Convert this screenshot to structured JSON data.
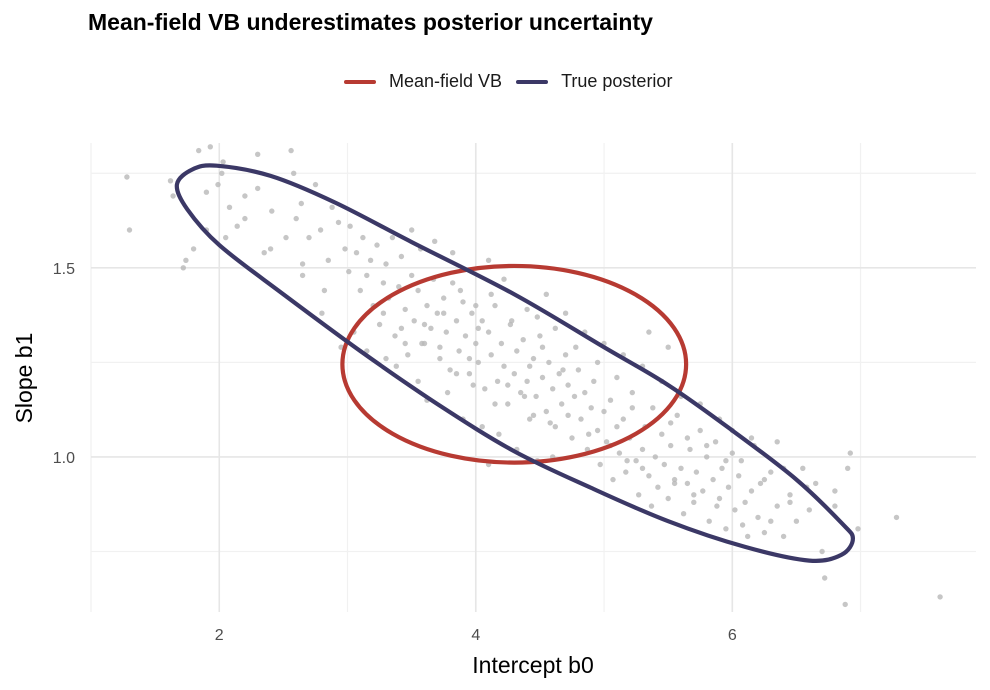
{
  "chart_data": {
    "type": "scatter",
    "title": "Mean-field VB underestimates posterior uncertainty",
    "xlabel": "Intercept  b0",
    "ylabel": "Slope  b1",
    "xlim": [
      1.0,
      7.9
    ],
    "ylim": [
      0.59,
      1.83
    ],
    "x_ticks": [
      2,
      4,
      6
    ],
    "x_tick_labels": [
      "2",
      "4",
      "6"
    ],
    "y_ticks": [
      1.0,
      1.5
    ],
    "y_tick_labels": [
      "1.0",
      "1.5"
    ],
    "grid": true,
    "legend_position": "top",
    "legend": [
      {
        "name": "Mean-field VB",
        "color": "#b73a32"
      },
      {
        "name": "True posterior",
        "color": "#3b3866"
      }
    ],
    "ellipses": [
      {
        "name": "Mean-field VB",
        "center": [
          4.3,
          1.245
        ],
        "semi_axis_x": 1.34,
        "semi_axis_y": 0.26,
        "color": "#b73a32"
      },
      {
        "name": "True posterior",
        "polyline": [
          [
            1.79,
            1.76
          ],
          [
            1.98,
            1.77
          ],
          [
            2.4,
            1.743
          ],
          [
            2.9,
            1.673
          ],
          [
            3.5,
            1.568
          ],
          [
            4.3,
            1.43
          ],
          [
            5.0,
            1.29
          ],
          [
            5.5,
            1.19
          ],
          [
            6.0,
            1.07
          ],
          [
            6.5,
            0.94
          ],
          [
            6.85,
            0.826
          ],
          [
            6.94,
            0.784
          ],
          [
            6.85,
            0.741
          ],
          [
            6.6,
            0.726
          ],
          [
            6.1,
            0.762
          ],
          [
            5.5,
            0.83
          ],
          [
            4.9,
            0.918
          ],
          [
            4.3,
            1.015
          ],
          [
            3.7,
            1.14
          ],
          [
            3.1,
            1.28
          ],
          [
            2.5,
            1.43
          ],
          [
            2.0,
            1.56
          ],
          [
            1.75,
            1.655
          ],
          [
            1.67,
            1.72
          ],
          [
            1.79,
            1.76
          ]
        ],
        "color": "#3b3866"
      }
    ],
    "point_color": "#b8b8b8",
    "points": [
      [
        1.28,
        1.74
      ],
      [
        1.3,
        1.6
      ],
      [
        1.62,
        1.73
      ],
      [
        1.64,
        1.69
      ],
      [
        1.72,
        1.5
      ],
      [
        1.74,
        1.52
      ],
      [
        1.8,
        1.55
      ],
      [
        1.84,
        1.81
      ],
      [
        1.9,
        1.7
      ],
      [
        1.9,
        1.6
      ],
      [
        1.93,
        1.82
      ],
      [
        1.99,
        1.72
      ],
      [
        2.02,
        1.75
      ],
      [
        2.03,
        1.78
      ],
      [
        2.05,
        1.58
      ],
      [
        2.08,
        1.66
      ],
      [
        2.14,
        1.61
      ],
      [
        2.2,
        1.69
      ],
      [
        2.3,
        1.8
      ],
      [
        2.3,
        1.71
      ],
      [
        2.35,
        1.54
      ],
      [
        2.41,
        1.65
      ],
      [
        2.52,
        1.58
      ],
      [
        2.56,
        1.81
      ],
      [
        2.58,
        1.75
      ],
      [
        2.6,
        1.63
      ],
      [
        2.64,
        1.67
      ],
      [
        2.65,
        1.48
      ],
      [
        2.7,
        1.58
      ],
      [
        2.75,
        1.72
      ],
      [
        2.79,
        1.6
      ],
      [
        2.82,
        1.44
      ],
      [
        2.85,
        1.52
      ],
      [
        2.88,
        1.66
      ],
      [
        2.93,
        1.62
      ],
      [
        2.98,
        1.55
      ],
      [
        3.01,
        1.49
      ],
      [
        3.02,
        1.61
      ],
      [
        3.07,
        1.54
      ],
      [
        3.1,
        1.44
      ],
      [
        3.12,
        1.58
      ],
      [
        3.15,
        1.48
      ],
      [
        3.18,
        1.52
      ],
      [
        3.2,
        1.4
      ],
      [
        3.23,
        1.56
      ],
      [
        3.25,
        1.35
      ],
      [
        3.28,
        1.46
      ],
      [
        3.3,
        1.51
      ],
      [
        3.32,
        1.42
      ],
      [
        3.35,
        1.58
      ],
      [
        3.37,
        1.32
      ],
      [
        3.4,
        1.45
      ],
      [
        3.42,
        1.53
      ],
      [
        3.45,
        1.39
      ],
      [
        3.47,
        1.27
      ],
      [
        3.5,
        1.48
      ],
      [
        3.52,
        1.36
      ],
      [
        3.55,
        1.44
      ],
      [
        3.57,
        1.55
      ],
      [
        3.6,
        1.3
      ],
      [
        3.62,
        1.4
      ],
      [
        3.65,
        1.34
      ],
      [
        3.67,
        1.47
      ],
      [
        3.7,
        1.38
      ],
      [
        3.72,
        1.29
      ],
      [
        3.75,
        1.42
      ],
      [
        3.77,
        1.33
      ],
      [
        3.8,
        1.23
      ],
      [
        3.82,
        1.46
      ],
      [
        3.85,
        1.36
      ],
      [
        3.87,
        1.28
      ],
      [
        3.9,
        1.41
      ],
      [
        3.92,
        1.32
      ],
      [
        3.95,
        1.22
      ],
      [
        3.97,
        1.38
      ],
      [
        4.0,
        1.3
      ],
      [
        4.02,
        1.25
      ],
      [
        4.05,
        1.36
      ],
      [
        4.07,
        1.18
      ],
      [
        4.1,
        1.33
      ],
      [
        4.12,
        1.27
      ],
      [
        4.15,
        1.4
      ],
      [
        4.17,
        1.2
      ],
      [
        4.2,
        1.3
      ],
      [
        4.22,
        1.24
      ],
      [
        4.25,
        1.14
      ],
      [
        4.27,
        1.35
      ],
      [
        4.3,
        1.22
      ],
      [
        4.32,
        1.28
      ],
      [
        4.35,
        1.17
      ],
      [
        4.37,
        1.31
      ],
      [
        4.4,
        1.2
      ],
      [
        4.42,
        1.1
      ],
      [
        4.45,
        1.26
      ],
      [
        4.47,
        1.16
      ],
      [
        4.5,
        1.32
      ],
      [
        4.52,
        1.21
      ],
      [
        4.55,
        1.12
      ],
      [
        4.57,
        1.25
      ],
      [
        4.6,
        1.18
      ],
      [
        4.62,
        1.08
      ],
      [
        4.65,
        1.22
      ],
      [
        4.67,
        1.14
      ],
      [
        4.7,
        1.27
      ],
      [
        4.72,
        1.19
      ],
      [
        4.75,
        1.05
      ],
      [
        4.77,
        1.16
      ],
      [
        4.8,
        1.23
      ],
      [
        4.82,
        1.1
      ],
      [
        4.85,
        1.17
      ],
      [
        4.87,
        1.02
      ],
      [
        4.9,
        1.13
      ],
      [
        4.92,
        1.2
      ],
      [
        4.95,
        1.07
      ],
      [
        4.97,
        0.98
      ],
      [
        5.0,
        1.12
      ],
      [
        5.02,
        1.04
      ],
      [
        5.05,
        1.15
      ],
      [
        5.07,
        0.94
      ],
      [
        5.1,
        1.08
      ],
      [
        5.12,
        1.01
      ],
      [
        5.15,
        1.1
      ],
      [
        5.17,
        0.96
      ],
      [
        5.2,
        1.05
      ],
      [
        5.22,
        1.13
      ],
      [
        5.25,
        0.99
      ],
      [
        5.27,
        0.9
      ],
      [
        5.3,
        1.02
      ],
      [
        5.32,
        1.08
      ],
      [
        5.35,
        0.95
      ],
      [
        5.37,
        0.87
      ],
      [
        5.4,
        1.0
      ],
      [
        5.42,
        0.92
      ],
      [
        5.45,
        1.06
      ],
      [
        5.47,
        0.98
      ],
      [
        5.5,
        0.89
      ],
      [
        5.52,
        1.03
      ],
      [
        5.55,
        0.94
      ],
      [
        5.57,
        1.11
      ],
      [
        5.6,
        0.97
      ],
      [
        5.62,
        0.85
      ],
      [
        5.65,
        0.93
      ],
      [
        5.67,
        1.02
      ],
      [
        5.7,
        0.88
      ],
      [
        5.72,
        0.96
      ],
      [
        5.75,
        1.07
      ],
      [
        5.77,
        0.91
      ],
      [
        5.8,
        1.0
      ],
      [
        5.82,
        0.83
      ],
      [
        5.85,
        0.94
      ],
      [
        5.87,
        1.04
      ],
      [
        5.9,
        0.89
      ],
      [
        5.92,
        0.97
      ],
      [
        5.95,
        0.81
      ],
      [
        5.97,
        0.92
      ],
      [
        6.0,
        1.01
      ],
      [
        6.02,
        0.86
      ],
      [
        6.05,
        0.95
      ],
      [
        6.07,
        0.99
      ],
      [
        6.1,
        0.88
      ],
      [
        6.12,
        0.79
      ],
      [
        6.15,
        0.91
      ],
      [
        6.17,
        1.03
      ],
      [
        6.2,
        0.84
      ],
      [
        6.22,
        0.93
      ],
      [
        6.25,
        0.8
      ],
      [
        6.3,
        0.96
      ],
      [
        6.35,
        0.87
      ],
      [
        6.4,
        0.79
      ],
      [
        6.45,
        0.9
      ],
      [
        6.5,
        0.83
      ],
      [
        6.55,
        0.97
      ],
      [
        6.6,
        0.86
      ],
      [
        6.65,
        0.93
      ],
      [
        6.7,
        0.75
      ],
      [
        6.72,
        0.68
      ],
      [
        6.8,
        0.91
      ],
      [
        6.9,
        0.97
      ],
      [
        6.92,
        1.01
      ],
      [
        6.8,
        0.87
      ],
      [
        7.28,
        0.84
      ],
      [
        6.98,
        0.81
      ],
      [
        7.62,
        0.63
      ],
      [
        6.88,
        0.61
      ],
      [
        2.8,
        1.38
      ],
      [
        3.05,
        1.33
      ],
      [
        3.15,
        1.28
      ],
      [
        3.38,
        1.24
      ],
      [
        3.55,
        1.2
      ],
      [
        3.62,
        1.15
      ],
      [
        3.78,
        1.17
      ],
      [
        3.9,
        1.1
      ],
      [
        4.05,
        1.08
      ],
      [
        4.18,
        1.06
      ],
      [
        4.32,
        1.02
      ],
      [
        4.48,
        0.99
      ],
      [
        4.6,
        1.0
      ],
      [
        4.1,
        0.98
      ],
      [
        3.95,
        1.26
      ],
      [
        4.4,
        1.39
      ],
      [
        4.55,
        1.43
      ],
      [
        4.7,
        1.38
      ],
      [
        4.85,
        1.33
      ],
      [
        5.0,
        1.3
      ],
      [
        5.15,
        1.27
      ],
      [
        5.3,
        1.24
      ],
      [
        5.45,
        1.2
      ],
      [
        5.6,
        1.16
      ],
      [
        5.75,
        1.14
      ],
      [
        5.9,
        1.1
      ],
      [
        6.0,
        1.07
      ],
      [
        6.15,
        1.05
      ],
      [
        6.35,
        1.04
      ],
      [
        5.5,
        1.29
      ],
      [
        5.35,
        1.33
      ],
      [
        3.3,
        1.26
      ],
      [
        3.45,
        1.3
      ],
      [
        3.6,
        1.35
      ],
      [
        3.75,
        1.38
      ],
      [
        3.88,
        1.44
      ],
      [
        4.0,
        1.4
      ],
      [
        4.12,
        1.43
      ],
      [
        4.22,
        1.47
      ],
      [
        3.5,
        1.6
      ],
      [
        3.68,
        1.57
      ],
      [
        3.82,
        1.54
      ],
      [
        4.1,
        1.52
      ],
      [
        2.95,
        1.29
      ],
      [
        2.65,
        1.51
      ],
      [
        2.4,
        1.55
      ],
      [
        2.2,
        1.63
      ],
      [
        4.45,
        1.11
      ],
      [
        4.58,
        1.09
      ],
      [
        4.72,
        1.11
      ],
      [
        4.88,
        1.06
      ],
      [
        5.05,
        1.03
      ],
      [
        5.18,
        0.99
      ],
      [
        5.3,
        0.97
      ],
      [
        4.95,
        1.25
      ],
      [
        4.78,
        1.29
      ],
      [
        4.62,
        1.34
      ],
      [
        4.48,
        1.37
      ],
      [
        4.28,
        1.36
      ],
      [
        4.42,
        1.24
      ],
      [
        4.52,
        1.29
      ],
      [
        4.68,
        1.23
      ],
      [
        4.38,
        1.16
      ],
      [
        4.25,
        1.19
      ],
      [
        3.98,
        1.19
      ],
      [
        3.85,
        1.22
      ],
      [
        4.15,
        1.14
      ],
      [
        4.02,
        1.34
      ],
      [
        3.72,
        1.26
      ],
      [
        3.58,
        1.3
      ],
      [
        3.42,
        1.34
      ],
      [
        3.28,
        1.38
      ],
      [
        5.1,
        1.21
      ],
      [
        5.22,
        1.17
      ],
      [
        5.38,
        1.13
      ],
      [
        5.52,
        1.09
      ],
      [
        5.65,
        1.05
      ],
      [
        5.8,
        1.03
      ],
      [
        5.95,
        0.99
      ],
      [
        6.25,
        0.94
      ],
      [
        6.4,
        0.97
      ],
      [
        6.58,
        0.92
      ],
      [
        6.45,
        0.88
      ],
      [
        6.3,
        0.83
      ],
      [
        6.08,
        0.82
      ],
      [
        5.88,
        0.87
      ],
      [
        5.7,
        0.9
      ],
      [
        5.55,
        0.93
      ]
    ]
  }
}
